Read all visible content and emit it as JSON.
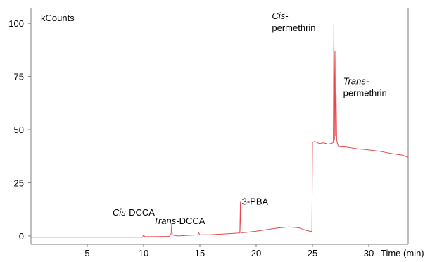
{
  "chart_data": {
    "type": "line",
    "ylabel": "kCounts",
    "xlabel": "Time (min)",
    "xlim": [
      0,
      33.5
    ],
    "ylim": [
      -4,
      107
    ],
    "x_ticks": [
      5,
      10,
      15,
      20,
      25,
      30
    ],
    "y_ticks": [
      0,
      25,
      50,
      75,
      100
    ],
    "grid": false,
    "series_color": "#e8474a",
    "annotations": [
      {
        "text": "DCCA",
        "italic_prefix": "Cis-",
        "x": 12.5,
        "y": 6
      },
      {
        "text": "DCCA",
        "italic_prefix": "Trans-",
        "x": 15.0,
        "y": 3
      },
      {
        "text": "3-PBA",
        "italic_prefix": "",
        "x": 18.6,
        "y": 16
      },
      {
        "italic_prefix": "Cis-",
        "text": "permethrin",
        "x": 26.9,
        "y": 100
      },
      {
        "italic_prefix": "Trans-",
        "text": "permethrin",
        "x": 27.1,
        "y": 67
      }
    ],
    "series": [
      {
        "points": [
          [
            0,
            -0.6
          ],
          [
            2,
            -0.6
          ],
          [
            4,
            -0.6
          ],
          [
            6,
            -0.6
          ],
          [
            8,
            -0.6
          ],
          [
            9.9,
            -0.6
          ],
          [
            10.0,
            0.4
          ],
          [
            10.1,
            -0.3
          ],
          [
            11,
            -0.3
          ],
          [
            12.3,
            -0.2
          ],
          [
            12.45,
            1.0
          ],
          [
            12.5,
            6.0
          ],
          [
            12.55,
            0.5
          ],
          [
            13,
            0.0
          ],
          [
            14.0,
            0.3
          ],
          [
            14.8,
            0.5
          ],
          [
            14.9,
            1.5
          ],
          [
            15.0,
            0.5
          ],
          [
            16,
            0.6
          ],
          [
            17,
            0.9
          ],
          [
            18.0,
            1.2
          ],
          [
            18.55,
            1.4
          ],
          [
            18.6,
            16.0
          ],
          [
            18.65,
            1.5
          ],
          [
            19,
            1.6
          ],
          [
            20,
            2.2
          ],
          [
            21,
            3.0
          ],
          [
            22,
            3.8
          ],
          [
            23,
            4.2
          ],
          [
            23.8,
            3.8
          ],
          [
            24.5,
            2.5
          ],
          [
            24.95,
            2.0
          ],
          [
            25.0,
            44.0
          ],
          [
            25.2,
            44.5
          ],
          [
            25.6,
            43.5
          ],
          [
            26.0,
            43.8
          ],
          [
            26.4,
            43.2
          ],
          [
            26.7,
            43.5
          ],
          [
            26.85,
            44.0
          ],
          [
            26.9,
            100.0
          ],
          [
            26.95,
            45.0
          ],
          [
            27.0,
            87.0
          ],
          [
            27.05,
            47.0
          ],
          [
            27.1,
            67.0
          ],
          [
            27.15,
            45.0
          ],
          [
            27.3,
            42.0
          ],
          [
            28,
            41.8
          ],
          [
            29,
            41.0
          ],
          [
            30,
            40.5
          ],
          [
            31,
            39.8
          ],
          [
            32,
            38.8
          ],
          [
            33,
            38.0
          ],
          [
            33.5,
            37.0
          ]
        ]
      }
    ]
  }
}
